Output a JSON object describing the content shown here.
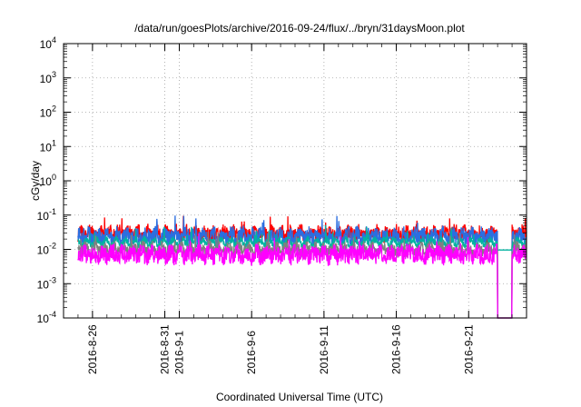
{
  "chart_data": {
    "type": "line",
    "title": "/data/run/goesPlots/archive/2016-09-24/flux/../bryn/31daysMoon.plot",
    "xlabel": "Coordinated Universal Time (UTC)",
    "ylabel": "cGy/day",
    "yscale": "log",
    "ylim": [
      0.0001,
      10000
    ],
    "yticks": [
      {
        "base": "10",
        "exp": "-4"
      },
      {
        "base": "10",
        "exp": "-3"
      },
      {
        "base": "10",
        "exp": "-2"
      },
      {
        "base": "10",
        "exp": "-1"
      },
      {
        "base": "10",
        "exp": "0"
      },
      {
        "base": "10",
        "exp": "1"
      },
      {
        "base": "10",
        "exp": "2"
      },
      {
        "base": "10",
        "exp": "3"
      },
      {
        "base": "10",
        "exp": "4"
      }
    ],
    "xlim": [
      "2016-08-24",
      "2016-09-25"
    ],
    "xticks": [
      "2016-8-26",
      "2016-8-31",
      "2016-9-1",
      "2016-9-6",
      "2016-9-11",
      "2016-9-16",
      "2016-9-21"
    ],
    "grid": true,
    "series": [
      {
        "color": "#ff0000",
        "level": 0.028,
        "spread": 0.45,
        "dropout": true
      },
      {
        "color": "#2b6ee0",
        "level": 0.024,
        "spread": 0.45,
        "dropout": true
      },
      {
        "color": "#00b3a0",
        "level": 0.016,
        "spread": 0.2,
        "dropout": false
      },
      {
        "color": "#808080",
        "level": 0.01,
        "spread": 0.35,
        "dropout": true
      },
      {
        "color": "#ff00ff",
        "level": 0.007,
        "spread": 0.5,
        "dropout": true
      }
    ],
    "dropout_window": [
      "2016-09-23",
      "2016-09-24"
    ]
  }
}
